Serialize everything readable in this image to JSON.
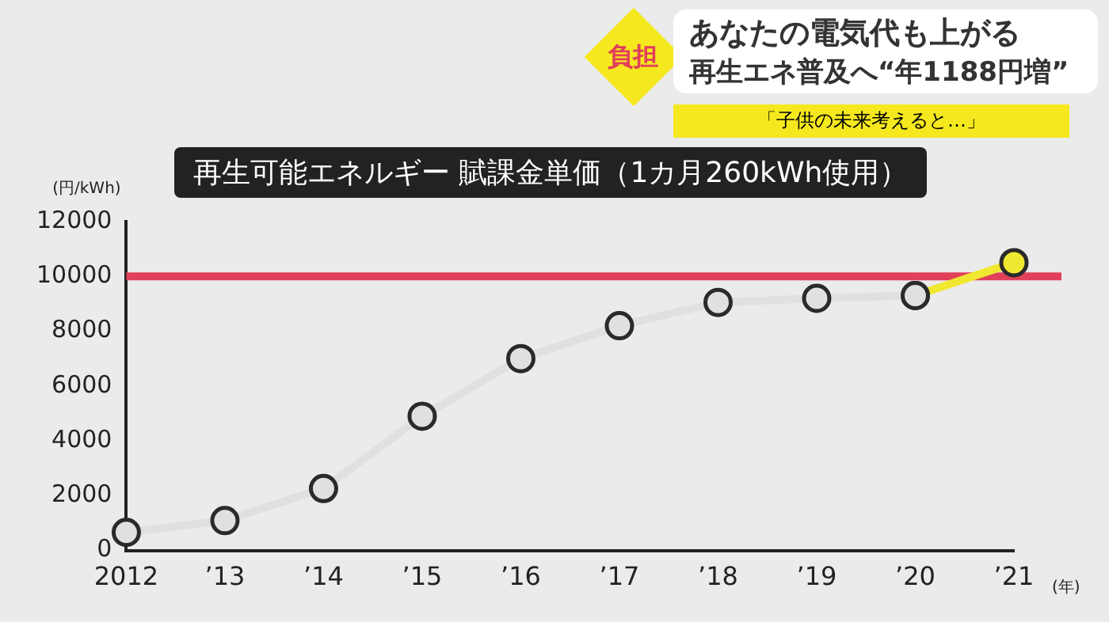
{
  "chart_data": {
    "type": "line",
    "title": "再生可能エネルギー 賦課金単価（1カ月260kWh使用）",
    "ylabel": "(円/kWh)",
    "xlabel": "(年)",
    "annotations": [
      "負担",
      "あなたの電気代も上がる",
      "再生エネ普及へ“年1188円増”",
      "「子供の未来考えると…」"
    ],
    "categories": [
      "2012",
      "’13",
      "’14",
      "’15",
      "’16",
      "’17",
      "’18",
      "’19",
      "’20",
      "’21"
    ],
    "series": [
      {
        "color": "#e0e0e0",
        "values": [
          660,
          1090,
          2260,
          4900,
          7000,
          8200,
          9050,
          9200,
          9300,
          null
        ]
      },
      {
        "color": "#f0e830",
        "values": [
          null,
          null,
          null,
          null,
          null,
          null,
          null,
          null,
          9300,
          10500
        ]
      }
    ],
    "ylim": [
      0,
      12000
    ],
    "yticks": [
      0,
      2000,
      4000,
      6000,
      8000,
      10000,
      12000
    ],
    "ref_lines": [
      {
        "axis": "y",
        "value": 10000,
        "color": "#e0405a"
      }
    ],
    "grid": false,
    "legend": false,
    "marker": "circle",
    "line_style": "solid"
  }
}
